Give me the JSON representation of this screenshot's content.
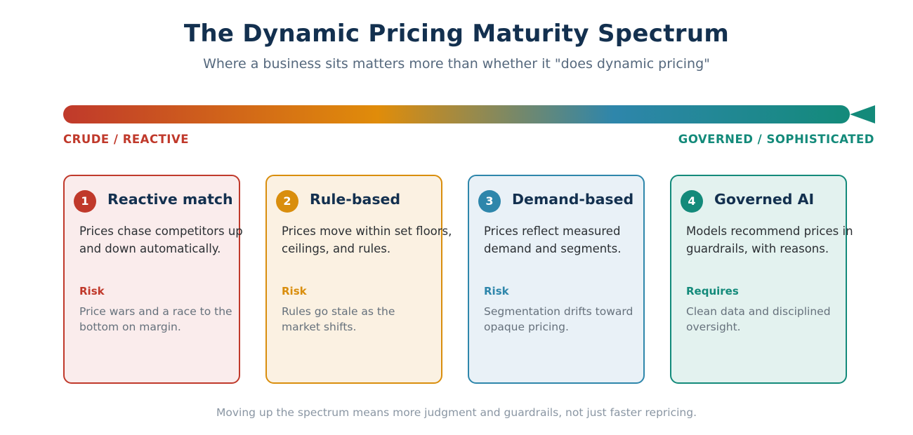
{
  "header": {
    "title": "The Dynamic Pricing Maturity Spectrum",
    "subtitle": "Where a business sits matters more than whether it \"does dynamic pricing\""
  },
  "spectrum": {
    "left_label": "CRUDE / REACTIVE",
    "right_label": "GOVERNED / SOPHISTICATED",
    "colors": [
      "#c0392b",
      "#e08c0a",
      "#2e86ab",
      "#138a7a"
    ]
  },
  "stages": [
    {
      "number": "1",
      "title": "Reactive match",
      "description": "Prices chase competitors up and down automatically.",
      "kicker": "Risk",
      "note": "Price wars and a race to the bottom on margin.",
      "accent": "#c0392b",
      "background": "#faecec"
    },
    {
      "number": "2",
      "title": "Rule-based",
      "description": "Prices move within set floors, ceilings, and rules.",
      "kicker": "Risk",
      "note": "Rules go stale as the market shifts.",
      "accent": "#d98e0d",
      "background": "#fbf1e2"
    },
    {
      "number": "3",
      "title": "Demand-based",
      "description": "Prices reflect measured demand and segments.",
      "kicker": "Risk",
      "note": "Segmentation drifts toward opaque pricing.",
      "accent": "#2e86ab",
      "background": "#e9f1f7"
    },
    {
      "number": "4",
      "title": "Governed AI",
      "description": "Models recommend prices in guardrails, with reasons.",
      "kicker": "Requires",
      "note": "Clean data and disciplined oversight.",
      "accent": "#138a7a",
      "background": "#e3f2ef"
    }
  ],
  "footer": {
    "text": "Moving up the spectrum means more judgment and guardrails, not just faster repricing."
  }
}
